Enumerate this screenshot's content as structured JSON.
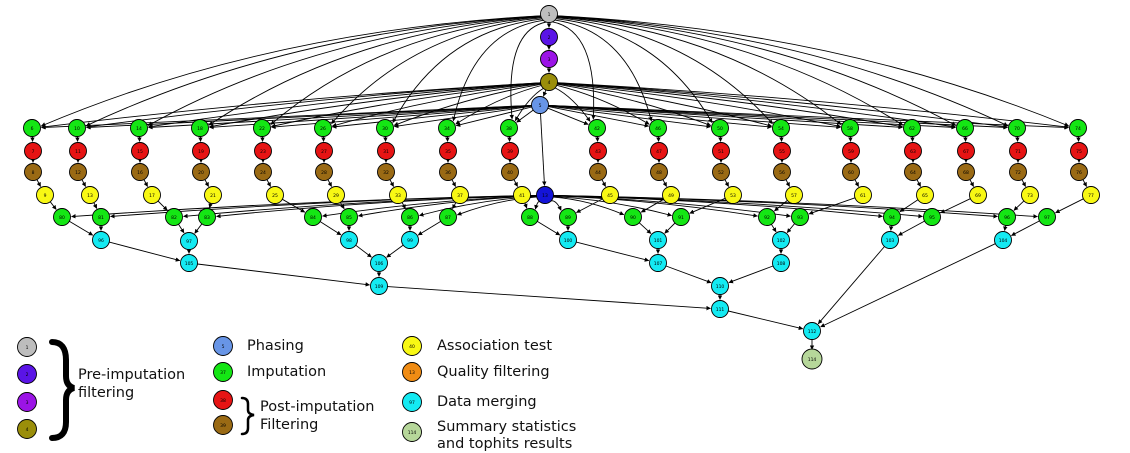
{
  "colors": {
    "gray": "#bdbdbd",
    "indigo": "#5a14e6",
    "violet": "#9b14e6",
    "olive": "#9a8e0a",
    "blue": "#6895e6",
    "green": "#14e614",
    "red": "#e61414",
    "brown": "#9a6a14",
    "yellow": "#f8f814",
    "orange": "#f08c14",
    "cyan": "#14eaf2",
    "sage": "#b6d79a",
    "darkblue": "#1414d8",
    "edge": "#000000"
  },
  "graph": {
    "root": "1",
    "chain": [
      "2",
      "3",
      "4"
    ],
    "phasing": "5",
    "quality": "13"
  },
  "legend": {
    "pre_imputation": {
      "node_labels": [
        "1",
        "2",
        "3",
        "4"
      ],
      "colors": [
        "gray",
        "indigo",
        "violet",
        "olive"
      ],
      "label_line1": "Pre-imputation",
      "label_line2": "filtering"
    },
    "phasing": {
      "node_label": "5",
      "color": "blue",
      "label": "Phasing"
    },
    "imputation": {
      "node_label": "37",
      "color": "green",
      "label": "Imputation"
    },
    "post_imputation": {
      "node_labels": [
        "38",
        "39"
      ],
      "colors": [
        "red",
        "brown"
      ],
      "label_line1": "Post-imputation",
      "label_line2": "Filtering"
    },
    "association": {
      "node_label": "40",
      "color": "yellow",
      "label": "Association test"
    },
    "quality": {
      "node_label": "13",
      "color": "orange",
      "label": "Quality filtering"
    },
    "merging": {
      "node_label": "97",
      "color": "cyan",
      "label": "Data merging"
    },
    "summary": {
      "node_label": "114",
      "color": "sage",
      "label_line1": "Summary statistics",
      "label_line2": "and tophits results"
    }
  }
}
